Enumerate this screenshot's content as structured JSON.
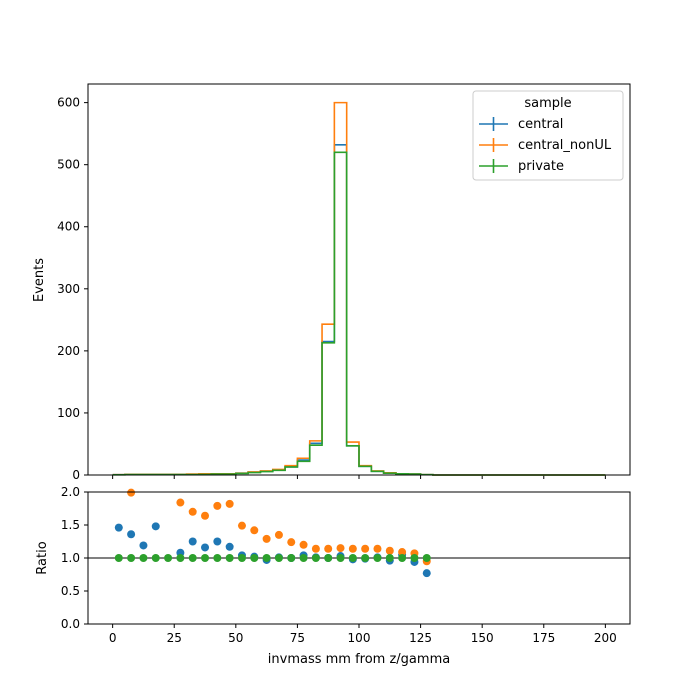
{
  "chart_data": {
    "type": "histogram-with-ratio",
    "colors": {
      "central": "#1f77b4",
      "central_nonUL": "#ff7f0e",
      "private": "#2ca02c"
    },
    "bin_edges": [
      0,
      5,
      10,
      15,
      20,
      25,
      30,
      35,
      40,
      45,
      50,
      55,
      60,
      65,
      70,
      75,
      80,
      85,
      90,
      95,
      100,
      105,
      110,
      115,
      120,
      125,
      130,
      135,
      140,
      145,
      150,
      155,
      160,
      165,
      170,
      175,
      180,
      185,
      190,
      195,
      200
    ],
    "xlim": [
      -10,
      210
    ],
    "xticks": [
      0,
      25,
      50,
      75,
      100,
      125,
      150,
      175,
      200
    ],
    "xlabel": "invmass mm from z/gamma",
    "main": {
      "ylabel": "Events",
      "ylim": [
        0,
        630
      ],
      "yticks": [
        0,
        100,
        200,
        300,
        400,
        500,
        600
      ]
    },
    "ratio": {
      "ylabel": "Ratio",
      "ylim": [
        0,
        2
      ],
      "yticks": [
        0.0,
        0.5,
        1.0,
        1.5,
        2.0
      ],
      "reference_line": 1.0
    },
    "legend": {
      "title": "sample",
      "position": "top-right",
      "entries": [
        "central",
        "central_nonUL",
        "private"
      ]
    },
    "series": [
      {
        "name": "central",
        "counts": [
          0.5,
          1,
          1,
          1,
          1,
          1,
          1,
          1.5,
          2,
          2,
          3,
          4.5,
          6,
          8,
          13,
          24,
          51,
          215,
          532,
          47,
          14,
          6,
          3,
          2,
          1.5,
          0.5,
          0,
          0,
          0,
          0,
          0,
          0,
          0,
          0,
          0,
          0,
          0,
          0,
          0,
          0
        ],
        "ratio": [
          1.46,
          1.36,
          1.19,
          1.48,
          null,
          1.08,
          1.25,
          1.16,
          1.25,
          1.17,
          1.04,
          1.02,
          0.97,
          1.01,
          1.0,
          1.04,
          1.01,
          1.0,
          1.03,
          0.98,
          0.99,
          1.01,
          0.96,
          1.05,
          0.94,
          0.77
        ]
      },
      {
        "name": "central_nonUL",
        "counts": [
          0.5,
          1,
          1,
          1,
          1,
          1,
          1.5,
          2,
          2,
          2,
          3,
          5,
          6.5,
          9,
          15,
          27,
          55,
          243,
          600,
          53,
          15,
          6.5,
          3.5,
          2,
          1.5,
          0.5,
          0,
          0,
          0,
          0,
          0,
          0,
          0,
          0,
          0,
          0,
          0,
          0,
          0,
          0
        ],
        "ratio": [
          null,
          1.99,
          null,
          null,
          null,
          1.84,
          1.7,
          1.64,
          1.79,
          1.82,
          1.49,
          1.42,
          1.29,
          1.35,
          1.24,
          1.2,
          1.14,
          1.14,
          1.15,
          1.14,
          1.14,
          1.14,
          1.11,
          1.09,
          1.07,
          0.95
        ]
      },
      {
        "name": "private",
        "counts": [
          0.3,
          0.8,
          0.8,
          0.8,
          0.8,
          0.8,
          0.8,
          1,
          1.5,
          1.5,
          2.5,
          4,
          5.5,
          7.5,
          13,
          22,
          48,
          213,
          520,
          47,
          14,
          6,
          3,
          2,
          1.5,
          0.5,
          0,
          0,
          0,
          0,
          0,
          0,
          0,
          0,
          0,
          0,
          0,
          0,
          0,
          0
        ],
        "ratio": [
          1,
          1,
          1,
          1,
          1,
          1,
          1,
          1,
          1,
          1,
          1,
          1,
          1,
          1,
          1,
          1,
          1,
          1,
          1,
          1,
          1,
          1,
          1,
          1,
          1,
          1
        ]
      }
    ]
  }
}
